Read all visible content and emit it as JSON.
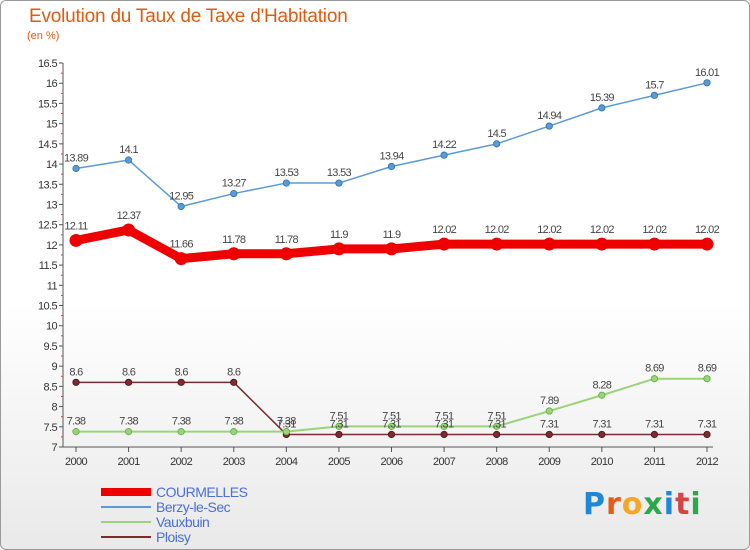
{
  "header": {
    "title": "Evolution du Taux de Taxe d'Habitation",
    "subtitle": "(en %)"
  },
  "logo": {
    "text": "Proxiti",
    "colors": [
      "#1e88d6",
      "#e85a12",
      "#f5a623",
      "#2aa84a",
      "#1e88d6",
      "#d64545",
      "#2aa84a"
    ]
  },
  "chart_data": {
    "type": "line",
    "title": "Evolution du Taux de Taxe d'Habitation",
    "ylabel": "(en %)",
    "x": [
      "2000",
      "2001",
      "2002",
      "2003",
      "2004",
      "2005",
      "2006",
      "2007",
      "2008",
      "2009",
      "2010",
      "2011",
      "2012"
    ],
    "ylim": [
      7,
      16.5
    ],
    "yticks": [
      "7",
      "7.5",
      "8",
      "8.5",
      "9",
      "9.5",
      "10",
      "10.5",
      "11",
      "11.5",
      "12",
      "12.5",
      "13",
      "13.5",
      "14",
      "14.5",
      "15",
      "15.5",
      "16",
      "16.5"
    ],
    "grid": false,
    "legend_position": "bottom-left",
    "series": [
      {
        "name": "COURMELLES",
        "color": "#ee0000",
        "values": [
          12.11,
          12.37,
          11.66,
          11.78,
          11.78,
          11.9,
          11.9,
          12.02,
          12.02,
          12.02,
          12.02,
          12.02,
          12.02
        ],
        "labels": [
          "12.11",
          "12.37",
          "11.66",
          "11.78",
          "11.78",
          "11.9",
          "11.9",
          "12.02",
          "12.02",
          "12.02",
          "12.02",
          "12.02",
          "12.02"
        ]
      },
      {
        "name": "Berzy-le-Sec",
        "color": "#5b9bd5",
        "values": [
          13.89,
          14.1,
          12.95,
          13.27,
          13.53,
          13.53,
          13.94,
          14.22,
          14.5,
          14.94,
          15.39,
          15.7,
          16.01
        ],
        "labels": [
          "13.89",
          "14.1",
          "12.95",
          "13.27",
          "13.53",
          "13.53",
          "13.94",
          "14.22",
          "14.5",
          "14.94",
          "15.39",
          "15.7",
          "16.01"
        ]
      },
      {
        "name": "Vauxbuin",
        "color": "#99d37a",
        "values": [
          7.38,
          7.38,
          7.38,
          7.38,
          7.38,
          7.51,
          7.51,
          7.51,
          7.51,
          7.89,
          8.28,
          8.69,
          8.69
        ],
        "labels": [
          "7.38",
          "7.38",
          "7.38",
          "7.38",
          "7.38",
          "7.51",
          "7.51",
          "7.51",
          "7.51",
          "7.89",
          "8.28",
          "8.69",
          "8.69"
        ]
      },
      {
        "name": "Ploisy",
        "color": "#7b2d2d",
        "values": [
          8.6,
          8.6,
          8.6,
          8.6,
          7.31,
          7.31,
          7.31,
          7.31,
          7.31,
          7.31,
          7.31,
          7.31,
          7.31
        ],
        "labels": [
          "8.6",
          "8.6",
          "8.6",
          "8.6",
          "7.31",
          "7.31",
          "7.31",
          "7.31",
          "7.31",
          "7.31",
          "7.31",
          "7.31",
          "7.31"
        ]
      }
    ]
  }
}
